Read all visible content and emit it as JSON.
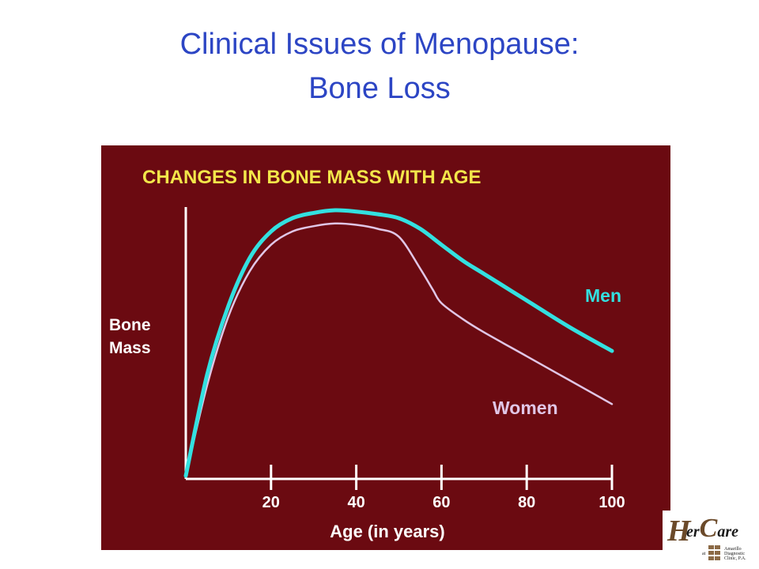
{
  "slide": {
    "title_line1": "Clinical Issues of Menopause:",
    "title_line2": "Bone Loss"
  },
  "chart_data": {
    "type": "line",
    "title": "CHANGES IN BONE MASS WITH AGE",
    "xlabel": "Age (in years)",
    "ylabel": "Bone Mass",
    "xlim": [
      0,
      100
    ],
    "ylim": [
      0,
      100
    ],
    "xticks": [
      20,
      40,
      60,
      80,
      100
    ],
    "grid": false,
    "series": [
      {
        "name": "Men",
        "color": "#33e0e0",
        "x": [
          0,
          5,
          10,
          15,
          20,
          25,
          30,
          35,
          40,
          45,
          50,
          55,
          60,
          65,
          70,
          80,
          90,
          100
        ],
        "y": [
          0,
          38,
          64,
          82,
          92,
          97,
          99,
          100,
          99.5,
          98.5,
          97,
          93,
          87,
          81,
          76,
          66,
          56,
          47
        ]
      },
      {
        "name": "Women",
        "color": "#e0c6e6",
        "x": [
          0,
          5,
          10,
          15,
          20,
          25,
          30,
          35,
          40,
          45,
          50,
          55,
          58,
          60,
          65,
          70,
          80,
          90,
          100
        ],
        "y": [
          0,
          34,
          60,
          77,
          87,
          92,
          94,
          95,
          94.5,
          93,
          90,
          78,
          70,
          65,
          59,
          54,
          45,
          36,
          27
        ]
      }
    ]
  },
  "logo": {
    "brand_h": "H",
    "brand_er": "er",
    "brand_c": "C",
    "brand_are": "are",
    "at": "at",
    "clinic_line1": "Amarillo",
    "clinic_line2": "Diagnostic",
    "clinic_line3": "Clinic, P.A."
  }
}
